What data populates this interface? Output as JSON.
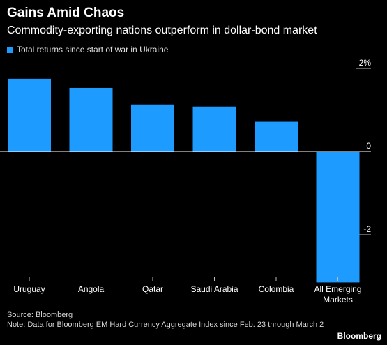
{
  "title": "Gains Amid Chaos",
  "subtitle": "Commodity-exporting nations outperform in dollar-bond market",
  "legend": {
    "label": "Total returns since start of war in Ukraine",
    "color": "#1e9bff"
  },
  "footer": {
    "source": "Source: Bloomberg",
    "note": "Note: Data for Bloomberg EM Hard Currency Aggregate Index since Feb. 23 through March 2"
  },
  "brand": "Bloomberg",
  "chart_data": {
    "type": "bar",
    "categories": [
      "Uruguay",
      "Angola",
      "Qatar",
      "Saudi Arabia",
      "Colombia",
      "All Emerging Markets"
    ],
    "category_lines": [
      [
        "Uruguay"
      ],
      [
        "Angola"
      ],
      [
        "Qatar"
      ],
      [
        "Saudi Arabia"
      ],
      [
        "Colombia"
      ],
      [
        "All Emerging",
        "Markets"
      ]
    ],
    "values": [
      1.75,
      1.53,
      1.13,
      1.08,
      0.73,
      -3.15
    ],
    "yticks": [
      {
        "value": 2,
        "label": "2%"
      },
      {
        "value": 0,
        "label": "0"
      },
      {
        "value": -2,
        "label": "-2"
      }
    ],
    "ylim": [
      -3.2,
      2.2
    ],
    "bar_color": "#1e9bff",
    "xlabel": "",
    "ylabel": ""
  }
}
